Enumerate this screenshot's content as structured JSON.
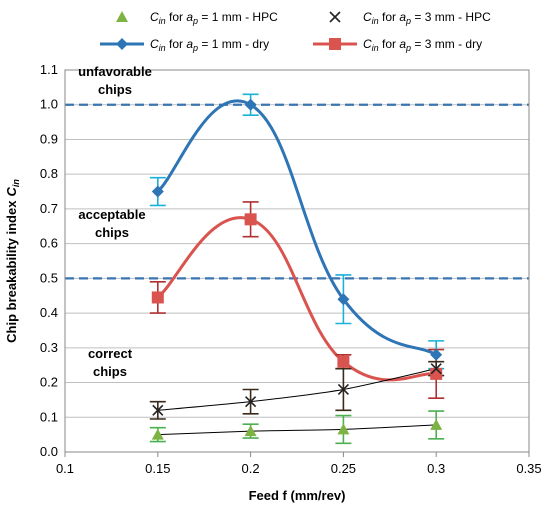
{
  "chart_data": {
    "type": "line",
    "xlabel": "Feed f (mm/rev)",
    "ylabel": "Chip breakability index  Cin",
    "xlim": [
      0.1,
      0.35
    ],
    "ylim": [
      0,
      1.1
    ],
    "x_ticks": [
      "0.1",
      "0.15",
      "0.2",
      "0.25",
      "0.3",
      "0.35"
    ],
    "y_ticks": [
      "0.0",
      "0.1",
      "0.2",
      "0.3",
      "0.4",
      "0.5",
      "0.6",
      "0.7",
      "0.8",
      "0.9",
      "1.0",
      "1.1"
    ],
    "grid": "horizontal",
    "legend_position": "top",
    "reference_lines": [
      {
        "y": 1.0,
        "color": "#3a75b0",
        "style": "dashed"
      },
      {
        "y": 0.5,
        "color": "#3a75b0",
        "style": "dashed"
      }
    ],
    "zone_labels": {
      "unfavorable": [
        "unfavorable",
        "chips"
      ],
      "acceptable": [
        "acceptable",
        "chips"
      ],
      "correct": [
        "correct",
        "chips"
      ]
    },
    "series": [
      {
        "name": "Cin for ap = 1 mm - HPC",
        "legend": {
          "c": "C",
          "c_sub": "in",
          "mid": " for ",
          "a": "a",
          "a_sub": "p",
          "rest": " = 1 mm - HPC"
        },
        "marker": "triangle",
        "color": "#7cb342",
        "line_color": "#000000",
        "line_width": 1,
        "err_color": "#4caf50",
        "x": [
          0.15,
          0.2,
          0.25,
          0.3
        ],
        "values": [
          0.05,
          0.06,
          0.065,
          0.078
        ],
        "err": [
          0.02,
          0.02,
          0.04,
          0.04
        ]
      },
      {
        "name": "Cin for ap = 3 mm - HPC",
        "legend": {
          "c": "C",
          "c_sub": "in",
          "mid": " for ",
          "a": "a",
          "a_sub": "p",
          "rest": " = 3 mm - HPC"
        },
        "marker": "x",
        "color": "#222222",
        "line_color": "#000000",
        "line_width": 1,
        "err_color": "#3a2a1a",
        "x": [
          0.15,
          0.2,
          0.25,
          0.3
        ],
        "values": [
          0.12,
          0.145,
          0.18,
          0.24
        ],
        "err": [
          0.025,
          0.035,
          0.06,
          0.02
        ]
      },
      {
        "name": "Cin for ap = 1 mm - dry",
        "legend": {
          "c": "C",
          "c_sub": "in",
          "mid": " for ",
          "a": "a",
          "a_sub": "p",
          "rest": " = 1 mm - dry"
        },
        "marker": "diamond",
        "color": "#2e75b6",
        "line_color": "#2e75b6",
        "line_width": 3,
        "err_color": "#1ab0d8",
        "x": [
          0.15,
          0.2,
          0.25,
          0.3
        ],
        "values": [
          0.75,
          1.0,
          0.44,
          0.28
        ],
        "err": [
          0.04,
          0.03,
          0.07,
          0.04
        ]
      },
      {
        "name": "Cin for ap = 3 mm - dry",
        "legend": {
          "c": "C",
          "c_sub": "in",
          "mid": " for ",
          "a": "a",
          "a_sub": "p",
          "rest": " = 3 mm - dry"
        },
        "marker": "square",
        "color": "#d9534f",
        "line_color": "#d9534f",
        "line_width": 3,
        "err_color": "#b03030",
        "x": [
          0.15,
          0.2,
          0.25,
          0.3
        ],
        "values": [
          0.445,
          0.67,
          0.26,
          0.225
        ],
        "err": [
          0.045,
          0.05,
          0.02,
          0.07
        ]
      }
    ]
  }
}
